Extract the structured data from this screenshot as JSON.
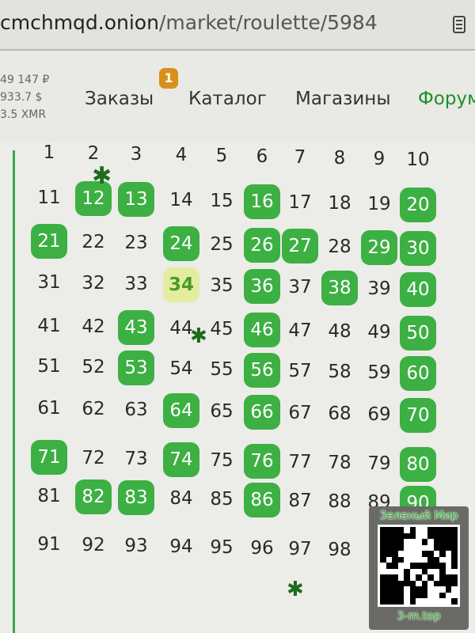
{
  "address_bar": {
    "host": "cmchmqd.onion",
    "path": "/market/roulette/5984",
    "reader_icon": "reader-mode-icon"
  },
  "balances": [
    "49 147 ₽",
    "933.7 $",
    "3.5 XMR"
  ],
  "nav": {
    "items": [
      {
        "label": "Заказы",
        "badge": "1"
      },
      {
        "label": "Каталог"
      },
      {
        "label": "Магазины"
      },
      {
        "label": "Форум"
      }
    ]
  },
  "roulette": {
    "header": [
      "1",
      "2",
      "3",
      "4",
      "5",
      "6",
      "7",
      "8",
      "9",
      "10"
    ],
    "rows": [
      [
        "11",
        "12",
        "13",
        "14",
        "15",
        "16",
        "17",
        "18",
        "19",
        "20"
      ],
      [
        "21",
        "22",
        "23",
        "24",
        "25",
        "26",
        "27",
        "28",
        "29",
        "30"
      ],
      [
        "31",
        "32",
        "33",
        "34",
        "35",
        "36",
        "37",
        "38",
        "39",
        "40"
      ],
      [
        "41",
        "42",
        "43",
        "44",
        "45",
        "46",
        "47",
        "48",
        "49",
        "50"
      ],
      [
        "51",
        "52",
        "53",
        "54",
        "55",
        "56",
        "57",
        "58",
        "59",
        "60"
      ],
      [
        "61",
        "62",
        "63",
        "64",
        "65",
        "66",
        "67",
        "68",
        "69",
        "70"
      ],
      [
        "71",
        "72",
        "73",
        "74",
        "75",
        "76",
        "77",
        "78",
        "79",
        "80"
      ],
      [
        "81",
        "82",
        "83",
        "84",
        "85",
        "86",
        "87",
        "88",
        "89",
        "90"
      ],
      [
        "91",
        "92",
        "93",
        "94",
        "95",
        "96",
        "97",
        "98"
      ]
    ],
    "taken": [
      "12",
      "13",
      "16",
      "20",
      "21",
      "24",
      "26",
      "27",
      "29",
      "30",
      "36",
      "38",
      "40",
      "43",
      "46",
      "50",
      "53",
      "56",
      "60",
      "64",
      "66",
      "70",
      "71",
      "74",
      "76",
      "80",
      "82",
      "83",
      "86",
      "90"
    ],
    "selected": "34",
    "taken_color": "#3cb043",
    "selected_color": "#e4eca0"
  },
  "watermark": {
    "title": "Зеленый Мир",
    "url": "3-m.top"
  }
}
